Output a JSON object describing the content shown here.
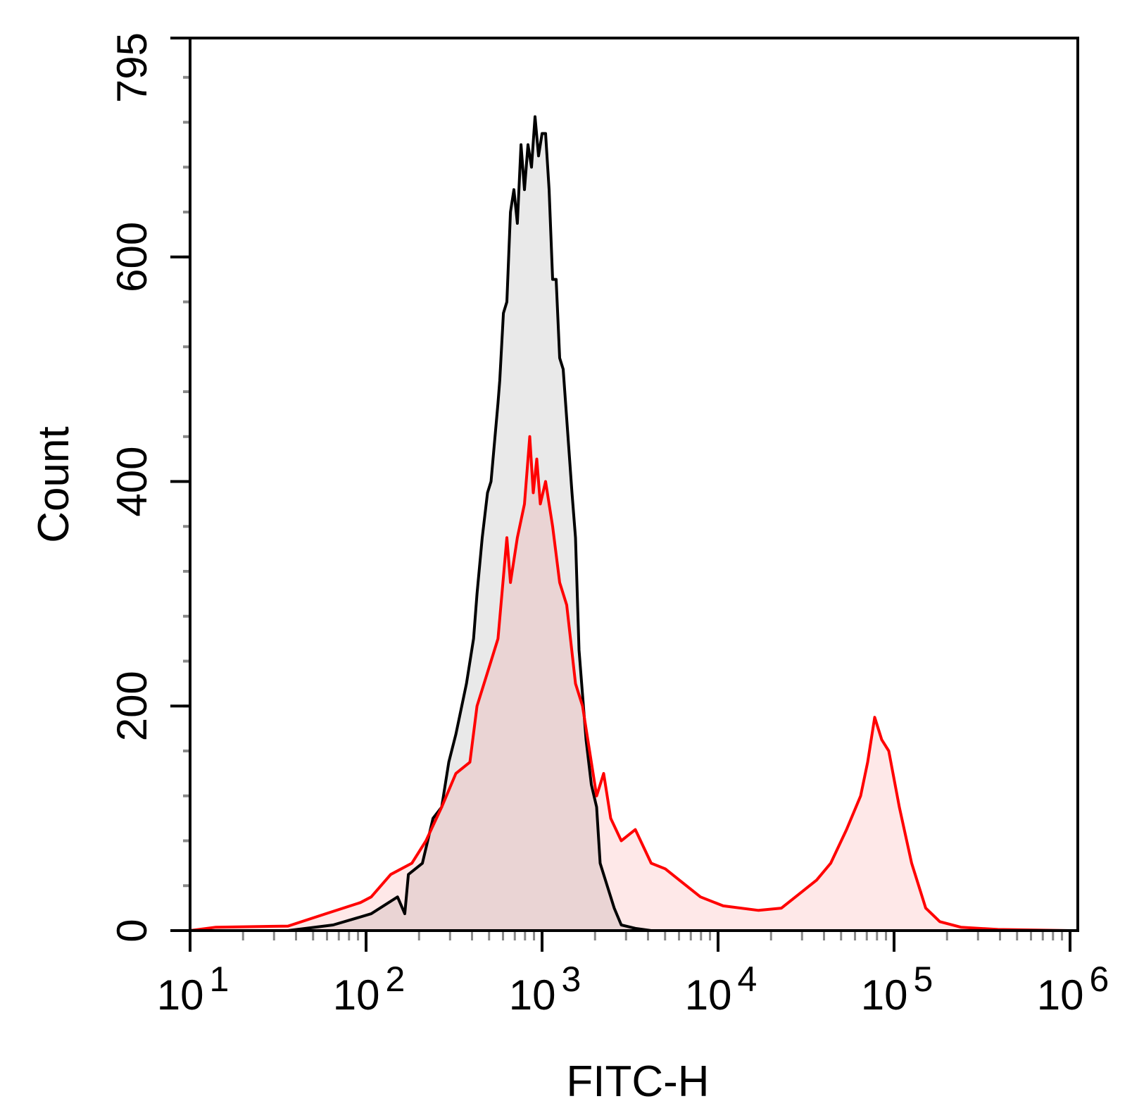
{
  "chart_data": {
    "type": "area",
    "title": "",
    "xlabel": "FITC-H",
    "ylabel": "Count",
    "x_scale": "log",
    "xlim": [
      10,
      1000000
    ],
    "ylim": [
      0,
      795
    ],
    "x_tick_labels": [
      {
        "base": "10",
        "exp": "1",
        "value": 10
      },
      {
        "base": "10",
        "exp": "2",
        "value": 100
      },
      {
        "base": "10",
        "exp": "3",
        "value": 1000
      },
      {
        "base": "10",
        "exp": "4",
        "value": 10000
      },
      {
        "base": "10",
        "exp": "5",
        "value": 100000
      },
      {
        "base": "10",
        "exp": "6",
        "value": 1000000
      }
    ],
    "y_tick_labels": [
      "0",
      "200",
      "400",
      "600",
      "795"
    ],
    "y_ticks": [
      0,
      200,
      400,
      600,
      795
    ],
    "grid": false,
    "legend": "none",
    "series": [
      {
        "color": "#000000",
        "fill": "#e9e9e9",
        "x": [
          10,
          36,
          65,
          107,
          151,
          166,
          174,
          209,
          240,
          269,
          295,
          324,
          372,
          408,
          427,
          457,
          490,
          513,
          562,
          575,
          603,
          631,
          661,
          692,
          724,
          759,
          794,
          832,
          871,
          912,
          955,
          1000,
          1047,
          1096,
          1148,
          1202,
          1259,
          1318,
          1479,
          1549,
          1622,
          1778,
          1905,
          2042,
          2138,
          2344,
          2570,
          2818,
          3388,
          4169,
          10700,
          1000000
        ],
        "y": [
          0,
          0,
          5,
          15,
          30,
          15,
          50,
          60,
          100,
          110,
          150,
          175,
          220,
          260,
          300,
          350,
          390,
          400,
          470,
          490,
          550,
          560,
          640,
          660,
          630,
          700,
          660,
          700,
          680,
          725,
          690,
          710,
          710,
          660,
          580,
          580,
          510,
          500,
          390,
          350,
          250,
          170,
          130,
          110,
          60,
          40,
          20,
          5,
          2,
          0,
          0,
          0
        ]
      },
      {
        "color": "#ff0000",
        "fill": "#fde8e8",
        "x": [
          10,
          14,
          36,
          59,
          93,
          107,
          138,
          182,
          219,
          269,
          324,
          389,
          427,
          513,
          562,
          631,
          661,
          724,
          794,
          851,
          891,
          933,
          977,
          1047,
          1148,
          1259,
          1380,
          1549,
          1698,
          1862,
          2042,
          2239,
          2455,
          2818,
          3388,
          4169,
          5012,
          6026,
          7943,
          10700,
          16982,
          22909,
          27542,
          36308,
          43652,
          53703,
          64565,
          70795,
          77625,
          85114,
          93325,
          107152,
          125893,
          151356,
          181970,
          239883,
          389045,
          1000000
        ],
        "y": [
          0,
          3,
          4,
          15,
          25,
          30,
          50,
          60,
          80,
          110,
          140,
          150,
          200,
          240,
          260,
          350,
          310,
          350,
          380,
          440,
          390,
          420,
          380,
          400,
          360,
          310,
          290,
          220,
          200,
          160,
          120,
          140,
          100,
          80,
          90,
          60,
          55,
          45,
          30,
          22,
          18,
          20,
          30,
          45,
          60,
          90,
          120,
          150,
          190,
          170,
          160,
          110,
          60,
          20,
          8,
          3,
          1,
          0
        ]
      }
    ]
  }
}
